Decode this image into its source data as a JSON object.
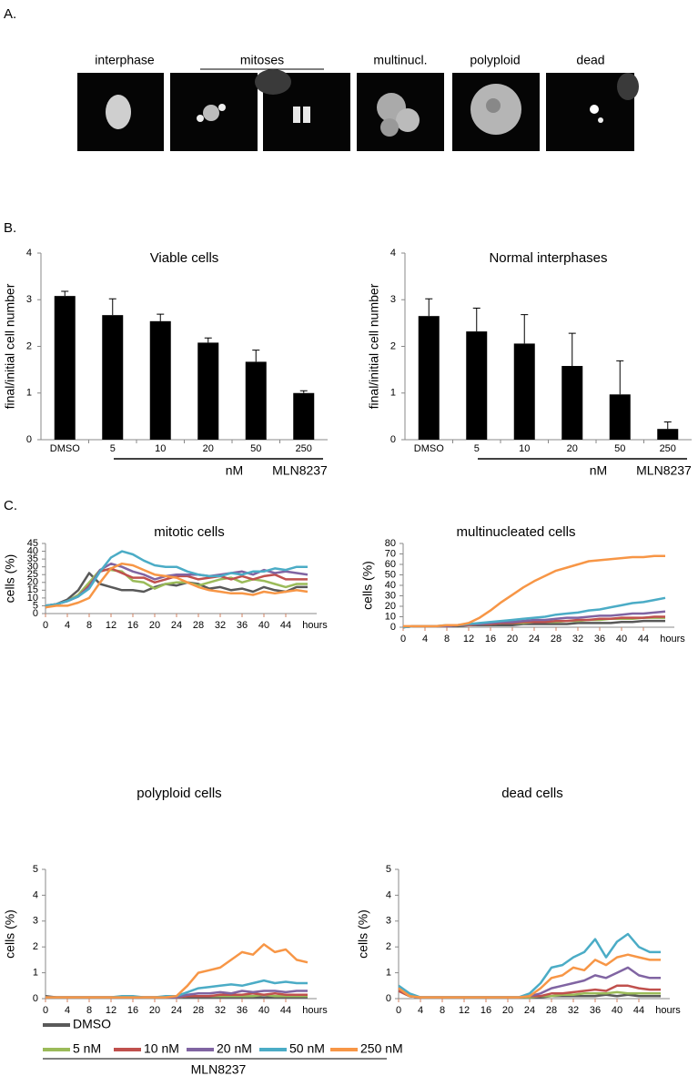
{
  "panel_labels": [
    "A.",
    "B.",
    "C."
  ],
  "image_labels": [
    "interphase",
    "mitoses",
    "multinucl.",
    "polyploid",
    "dead"
  ],
  "legend_group_label": "MLN8237",
  "chart_data": [
    {
      "type": "bar",
      "title": "Viable cells",
      "ylabel": "final/initial cell number",
      "categories": [
        "DMSO",
        "5",
        "10",
        "20",
        "50",
        "250"
      ],
      "x_group_labels": [
        "nM",
        "MLN8237"
      ],
      "values": [
        3.08,
        2.67,
        2.54,
        2.08,
        1.67,
        1.0
      ],
      "errors": [
        0.1,
        0.35,
        0.15,
        0.1,
        0.25,
        0.05
      ],
      "color": "#000000",
      "ylim": [
        0,
        4
      ],
      "yticks": [
        0,
        1,
        2,
        3,
        4
      ]
    },
    {
      "type": "bar",
      "title": "Normal interphases",
      "ylabel": "final/initial cell number",
      "categories": [
        "DMSO",
        "5",
        "10",
        "20",
        "50",
        "250"
      ],
      "x_group_labels": [
        "nM",
        "MLN8237"
      ],
      "values": [
        2.65,
        2.32,
        2.06,
        1.58,
        0.97,
        0.23
      ],
      "errors": [
        0.37,
        0.5,
        0.62,
        0.7,
        0.72,
        0.15
      ],
      "color": "#000000",
      "ylim": [
        0,
        4
      ],
      "yticks": [
        0,
        1,
        2,
        3,
        4
      ]
    },
    {
      "type": "line",
      "title": "mitotic cells",
      "ylabel": "cells (%)",
      "xlabel": "hours",
      "x": [
        0,
        2,
        4,
        6,
        8,
        10,
        12,
        14,
        16,
        18,
        20,
        22,
        24,
        26,
        28,
        30,
        32,
        34,
        36,
        38,
        40,
        42,
        44,
        46,
        48
      ],
      "xlim": [
        0,
        48
      ],
      "xticks": [
        0,
        4,
        8,
        12,
        16,
        20,
        24,
        28,
        32,
        36,
        40,
        44
      ],
      "ylim": [
        0,
        45
      ],
      "yticks": [
        0,
        5,
        10,
        15,
        20,
        25,
        30,
        35,
        40,
        45
      ],
      "series": [
        {
          "name": "DMSO",
          "color": "#595959",
          "values": [
            4,
            6,
            9,
            15,
            26,
            19,
            17,
            15,
            15,
            14,
            17,
            19,
            18,
            20,
            19,
            16,
            17,
            15,
            16,
            14,
            17,
            15,
            14,
            17,
            17
          ]
        },
        {
          "name": "5 nM",
          "color": "#9bbb59",
          "values": [
            5,
            6,
            8,
            12,
            20,
            28,
            28,
            27,
            21,
            20,
            16,
            19,
            20,
            20,
            18,
            20,
            22,
            23,
            20,
            22,
            21,
            19,
            17,
            19,
            19
          ]
        },
        {
          "name": "10 nM",
          "color": "#c0504d",
          "values": [
            5,
            6,
            8,
            11,
            18,
            27,
            29,
            26,
            23,
            23,
            20,
            22,
            24,
            24,
            22,
            23,
            24,
            22,
            24,
            22,
            24,
            25,
            22,
            22,
            22
          ]
        },
        {
          "name": "20 nM",
          "color": "#8064a2",
          "values": [
            5,
            6,
            8,
            11,
            17,
            28,
            32,
            30,
            27,
            25,
            22,
            24,
            25,
            25,
            25,
            24,
            25,
            26,
            27,
            25,
            28,
            26,
            27,
            26,
            25
          ]
        },
        {
          "name": "50 nM",
          "color": "#4bacc6",
          "values": [
            5,
            6,
            8,
            11,
            16,
            27,
            36,
            40,
            38,
            34,
            31,
            30,
            30,
            27,
            25,
            24,
            24,
            26,
            25,
            27,
            27,
            29,
            28,
            30,
            30
          ]
        },
        {
          "name": "250 nM",
          "color": "#f79646",
          "values": [
            4,
            5,
            5,
            7,
            10,
            20,
            29,
            32,
            31,
            28,
            25,
            24,
            23,
            20,
            17,
            15,
            14,
            13,
            13,
            12,
            14,
            13,
            14,
            15,
            14
          ]
        }
      ]
    },
    {
      "type": "line",
      "title": "multinucleated cells",
      "ylabel": "cells (%)",
      "xlabel": "hours",
      "x": [
        0,
        2,
        4,
        6,
        8,
        10,
        12,
        14,
        16,
        18,
        20,
        22,
        24,
        26,
        28,
        30,
        32,
        34,
        36,
        38,
        40,
        42,
        44,
        46,
        48
      ],
      "xlim": [
        0,
        48
      ],
      "xticks": [
        0,
        4,
        8,
        12,
        16,
        20,
        24,
        28,
        32,
        36,
        40,
        44
      ],
      "ylim": [
        0,
        80
      ],
      "yticks": [
        0,
        10,
        20,
        30,
        40,
        50,
        60,
        70,
        80
      ],
      "series": [
        {
          "name": "DMSO",
          "color": "#595959",
          "values": [
            0,
            1,
            1,
            1,
            1,
            1,
            2,
            2,
            2,
            2,
            2,
            3,
            3,
            3,
            3,
            3,
            4,
            4,
            4,
            4,
            5,
            5,
            6,
            6,
            6
          ]
        },
        {
          "name": "5 nM",
          "color": "#9bbb59",
          "values": [
            0,
            1,
            1,
            1,
            1,
            2,
            2,
            3,
            3,
            4,
            4,
            4,
            5,
            5,
            5,
            6,
            6,
            7,
            7,
            8,
            8,
            8,
            9,
            9,
            9
          ]
        },
        {
          "name": "10 nM",
          "color": "#c0504d",
          "values": [
            0,
            1,
            1,
            1,
            1,
            2,
            2,
            3,
            3,
            4,
            4,
            5,
            5,
            5,
            6,
            6,
            7,
            7,
            8,
            8,
            9,
            9,
            9,
            10,
            10
          ]
        },
        {
          "name": "20 nM",
          "color": "#8064a2",
          "values": [
            0,
            1,
            1,
            1,
            1,
            2,
            3,
            3,
            4,
            5,
            5,
            6,
            7,
            7,
            8,
            9,
            9,
            10,
            11,
            11,
            12,
            13,
            13,
            14,
            15
          ]
        },
        {
          "name": "50 nM",
          "color": "#4bacc6",
          "values": [
            0,
            1,
            1,
            1,
            2,
            2,
            3,
            4,
            5,
            6,
            7,
            8,
            9,
            10,
            12,
            13,
            14,
            16,
            17,
            19,
            21,
            23,
            24,
            26,
            28
          ]
        },
        {
          "name": "250 nM",
          "color": "#f79646",
          "values": [
            1,
            1,
            1,
            1,
            2,
            2,
            4,
            9,
            16,
            24,
            31,
            38,
            44,
            49,
            54,
            57,
            60,
            63,
            64,
            65,
            66,
            67,
            67,
            68,
            68
          ]
        }
      ]
    },
    {
      "type": "line",
      "title": "polyploid cells",
      "ylabel": "cells (%)",
      "xlabel": "hours",
      "x": [
        0,
        2,
        4,
        6,
        8,
        10,
        12,
        14,
        16,
        18,
        20,
        22,
        24,
        26,
        28,
        30,
        32,
        34,
        36,
        38,
        40,
        42,
        44,
        46,
        48
      ],
      "xlim": [
        0,
        48
      ],
      "xticks": [
        0,
        4,
        8,
        12,
        16,
        20,
        24,
        28,
        32,
        36,
        40,
        44
      ],
      "ylim": [
        0,
        5
      ],
      "yticks": [
        0,
        1,
        2,
        3,
        4,
        5
      ],
      "series": [
        {
          "name": "DMSO",
          "color": "#595959",
          "values": [
            0.1,
            0.05,
            0.05,
            0.05,
            0.05,
            0.05,
            0.05,
            0.05,
            0.05,
            0.05,
            0.05,
            0.05,
            0.05,
            0.05,
            0.05,
            0.05,
            0.05,
            0.05,
            0.05,
            0.05,
            0.05,
            0.05,
            0.05,
            0.05,
            0.05
          ]
        },
        {
          "name": "5 nM",
          "color": "#9bbb59",
          "values": [
            0.05,
            0.05,
            0.05,
            0.05,
            0.05,
            0.05,
            0.05,
            0.05,
            0.05,
            0.05,
            0.05,
            0.05,
            0.05,
            0.1,
            0.1,
            0.1,
            0.1,
            0.1,
            0.1,
            0.1,
            0.15,
            0.1,
            0.1,
            0.1,
            0.1
          ]
        },
        {
          "name": "10 nM",
          "color": "#c0504d",
          "values": [
            0.05,
            0.05,
            0.05,
            0.05,
            0.05,
            0.05,
            0.05,
            0.05,
            0.05,
            0.05,
            0.05,
            0.05,
            0.05,
            0.1,
            0.1,
            0.1,
            0.15,
            0.15,
            0.15,
            0.2,
            0.15,
            0.2,
            0.15,
            0.15,
            0.15
          ]
        },
        {
          "name": "20 nM",
          "color": "#8064a2",
          "values": [
            0.05,
            0.05,
            0.05,
            0.05,
            0.05,
            0.05,
            0.05,
            0.05,
            0.05,
            0.05,
            0.05,
            0.05,
            0.05,
            0.15,
            0.2,
            0.2,
            0.25,
            0.2,
            0.3,
            0.25,
            0.3,
            0.3,
            0.25,
            0.3,
            0.3
          ]
        },
        {
          "name": "50 nM",
          "color": "#4bacc6",
          "values": [
            0.05,
            0.05,
            0.05,
            0.05,
            0.05,
            0.05,
            0.05,
            0.1,
            0.1,
            0.05,
            0.05,
            0.1,
            0.1,
            0.25,
            0.4,
            0.45,
            0.5,
            0.55,
            0.5,
            0.6,
            0.7,
            0.6,
            0.65,
            0.6,
            0.6
          ]
        },
        {
          "name": "250 nM",
          "color": "#f79646",
          "values": [
            0.05,
            0.05,
            0.05,
            0.05,
            0.05,
            0.05,
            0.05,
            0.05,
            0.05,
            0.05,
            0.05,
            0.05,
            0.1,
            0.5,
            1.0,
            1.1,
            1.2,
            1.5,
            1.8,
            1.7,
            2.1,
            1.8,
            1.9,
            1.5,
            1.4
          ]
        }
      ]
    },
    {
      "type": "line",
      "title": "dead cells",
      "ylabel": "cells (%)",
      "xlabel": "hours",
      "x": [
        0,
        2,
        4,
        6,
        8,
        10,
        12,
        14,
        16,
        18,
        20,
        22,
        24,
        26,
        28,
        30,
        32,
        34,
        36,
        38,
        40,
        42,
        44,
        46,
        48
      ],
      "xlim": [
        0,
        48
      ],
      "xticks": [
        0,
        4,
        8,
        12,
        16,
        20,
        24,
        28,
        32,
        36,
        40,
        44
      ],
      "ylim": [
        0,
        5
      ],
      "yticks": [
        0,
        1,
        2,
        3,
        4,
        5
      ],
      "series": [
        {
          "name": "DMSO",
          "color": "#595959",
          "values": [
            0.3,
            0.1,
            0.05,
            0.05,
            0.05,
            0.05,
            0.05,
            0.05,
            0.05,
            0.05,
            0.05,
            0.05,
            0.05,
            0.05,
            0.1,
            0.1,
            0.1,
            0.1,
            0.1,
            0.15,
            0.1,
            0.15,
            0.1,
            0.1,
            0.1
          ]
        },
        {
          "name": "5 nM",
          "color": "#9bbb59",
          "values": [
            0.3,
            0.1,
            0.05,
            0.05,
            0.05,
            0.05,
            0.05,
            0.05,
            0.05,
            0.05,
            0.05,
            0.05,
            0.05,
            0.1,
            0.1,
            0.15,
            0.15,
            0.2,
            0.2,
            0.2,
            0.25,
            0.2,
            0.2,
            0.2,
            0.2
          ]
        },
        {
          "name": "10 nM",
          "color": "#c0504d",
          "values": [
            0.3,
            0.1,
            0.05,
            0.05,
            0.05,
            0.05,
            0.05,
            0.05,
            0.05,
            0.05,
            0.05,
            0.05,
            0.1,
            0.1,
            0.2,
            0.2,
            0.25,
            0.3,
            0.35,
            0.3,
            0.5,
            0.5,
            0.4,
            0.35,
            0.35
          ]
        },
        {
          "name": "20 nM",
          "color": "#8064a2",
          "values": [
            0.4,
            0.1,
            0.05,
            0.05,
            0.05,
            0.05,
            0.05,
            0.05,
            0.05,
            0.05,
            0.05,
            0.05,
            0.1,
            0.2,
            0.4,
            0.5,
            0.6,
            0.7,
            0.9,
            0.8,
            1.0,
            1.2,
            0.9,
            0.8,
            0.8
          ]
        },
        {
          "name": "50 nM",
          "color": "#4bacc6",
          "values": [
            0.5,
            0.2,
            0.05,
            0.05,
            0.05,
            0.05,
            0.05,
            0.05,
            0.05,
            0.05,
            0.05,
            0.05,
            0.2,
            0.6,
            1.2,
            1.3,
            1.6,
            1.8,
            2.3,
            1.6,
            2.2,
            2.5,
            2.0,
            1.8,
            1.8
          ]
        },
        {
          "name": "250 nM",
          "color": "#f79646",
          "values": [
            0.4,
            0.1,
            0.05,
            0.05,
            0.05,
            0.05,
            0.05,
            0.05,
            0.05,
            0.05,
            0.05,
            0.05,
            0.1,
            0.4,
            0.8,
            0.9,
            1.2,
            1.1,
            1.5,
            1.3,
            1.6,
            1.7,
            1.6,
            1.5,
            1.5
          ]
        }
      ]
    }
  ]
}
